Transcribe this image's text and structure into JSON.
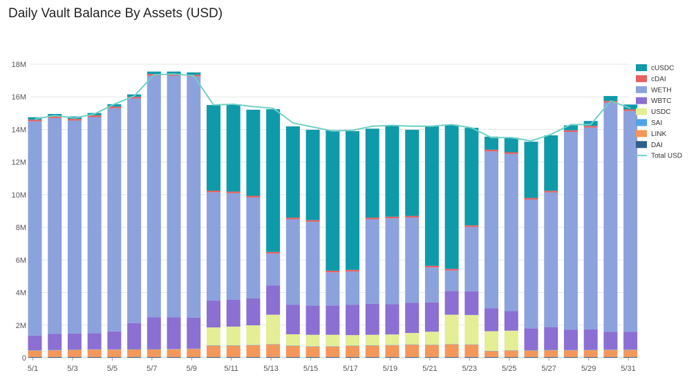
{
  "chart_data": {
    "type": "bar",
    "title": "Daily Vault Balance By Assets (USD)",
    "stacked": true,
    "xlabel": "",
    "ylabel": "",
    "ylim": [
      0,
      18000000
    ],
    "y_ticks": [
      0,
      2000000,
      4000000,
      6000000,
      8000000,
      10000000,
      12000000,
      14000000,
      16000000,
      18000000
    ],
    "y_tick_labels": [
      "0",
      "2M",
      "4M",
      "6M",
      "8M",
      "10M",
      "12M",
      "14M",
      "16M",
      "18M"
    ],
    "grid": true,
    "legend_position": "right",
    "categories": [
      "5/1",
      "5/2",
      "5/3",
      "5/4",
      "5/5",
      "5/6",
      "5/7",
      "5/8",
      "5/9",
      "5/10",
      "5/11",
      "5/12",
      "5/13",
      "5/14",
      "5/15",
      "5/16",
      "5/17",
      "5/18",
      "5/19",
      "5/20",
      "5/21",
      "5/22",
      "5/23",
      "5/24",
      "5/25",
      "5/26",
      "5/27",
      "5/28",
      "5/29",
      "5/30",
      "5/31"
    ],
    "x_tick_labels": [
      "5/1",
      "5/3",
      "5/5",
      "5/7",
      "5/9",
      "5/11",
      "5/13",
      "5/15",
      "5/17",
      "5/19",
      "5/21",
      "5/23",
      "5/25",
      "5/27",
      "5/29",
      "5/31"
    ],
    "series": [
      {
        "name": "DAI",
        "color": "#2d5f8a",
        "values": [
          40000,
          40000,
          40000,
          40000,
          40000,
          40000,
          40000,
          40000,
          40000,
          40000,
          40000,
          40000,
          40000,
          40000,
          40000,
          40000,
          40000,
          40000,
          40000,
          40000,
          40000,
          40000,
          40000,
          40000,
          40000,
          40000,
          40000,
          40000,
          40000,
          40000,
          40000
        ]
      },
      {
        "name": "LINK",
        "color": "#f4975b",
        "values": [
          400000,
          420000,
          450000,
          460000,
          460000,
          470000,
          470000,
          480000,
          500000,
          700000,
          700000,
          730000,
          780000,
          680000,
          650000,
          650000,
          680000,
          700000,
          720000,
          760000,
          740000,
          780000,
          760000,
          370000,
          400000,
          400000,
          420000,
          420000,
          430000,
          440000,
          440000
        ]
      },
      {
        "name": "SAI",
        "color": "#4fa3e8",
        "values": [
          20000,
          20000,
          20000,
          20000,
          20000,
          20000,
          20000,
          20000,
          20000,
          20000,
          20000,
          20000,
          20000,
          20000,
          20000,
          20000,
          20000,
          20000,
          20000,
          20000,
          20000,
          20000,
          20000,
          20000,
          20000,
          20000,
          20000,
          20000,
          20000,
          20000,
          20000
        ]
      },
      {
        "name": "USDC",
        "color": "#e3ee95",
        "values": [
          0,
          0,
          0,
          0,
          0,
          0,
          0,
          0,
          0,
          1100000,
          1150000,
          1200000,
          1800000,
          700000,
          700000,
          700000,
          650000,
          650000,
          650000,
          700000,
          800000,
          1800000,
          1800000,
          1200000,
          1200000,
          0,
          0,
          0,
          0,
          0,
          0
        ]
      },
      {
        "name": "WBTC",
        "color": "#8b6fd3",
        "values": [
          900000,
          980000,
          980000,
          980000,
          1100000,
          1600000,
          1950000,
          1950000,
          1900000,
          1650000,
          1650000,
          1650000,
          1800000,
          1800000,
          1800000,
          1800000,
          1850000,
          1900000,
          1850000,
          1850000,
          1800000,
          1450000,
          1450000,
          1400000,
          1200000,
          1350000,
          1400000,
          1250000,
          1250000,
          1100000,
          1100000
        ]
      },
      {
        "name": "WETH",
        "color": "#8ca2dd",
        "values": [
          13140000,
          13240000,
          13060000,
          13260000,
          13680000,
          13770000,
          14820000,
          14810000,
          14790000,
          6640000,
          6530000,
          6190000,
          1950000,
          5250000,
          5130000,
          2030000,
          2050000,
          5180000,
          5270000,
          5230000,
          2140000,
          1260000,
          3950000,
          9630000,
          9640000,
          7890000,
          8260000,
          12120000,
          12380000,
          14050000,
          13530000
        ]
      },
      {
        "name": "cDAI",
        "color": "#e86060",
        "values": [
          100000,
          100000,
          100000,
          100000,
          100000,
          100000,
          100000,
          100000,
          100000,
          100000,
          100000,
          100000,
          100000,
          100000,
          100000,
          100000,
          100000,
          100000,
          100000,
          100000,
          100000,
          100000,
          100000,
          100000,
          100000,
          100000,
          100000,
          100000,
          100000,
          100000,
          100000
        ]
      },
      {
        "name": "cUSDC",
        "color": "#0f9aaa",
        "values": [
          150000,
          150000,
          150000,
          150000,
          150000,
          150000,
          150000,
          150000,
          150000,
          5250000,
          5310000,
          5280000,
          8750000,
          5600000,
          5540000,
          8620000,
          8510000,
          5460000,
          5600000,
          5280000,
          8550000,
          8840000,
          5980000,
          800000,
          900000,
          3450000,
          3400000,
          300000,
          300000,
          300000,
          300000
        ]
      }
    ],
    "line_series": {
      "name": "Total USD",
      "color": "#6fd0c5",
      "values": [
        14650000,
        14850000,
        14700000,
        14950000,
        15550000,
        16050000,
        17350000,
        17400000,
        17300000,
        15500000,
        15550000,
        15400000,
        15300000,
        14400000,
        14150000,
        13900000,
        13950000,
        14200000,
        14250000,
        14200000,
        14200000,
        14300000,
        14100000,
        13500000,
        13500000,
        13300000,
        13700000,
        14300000,
        14300000,
        15750000,
        15300000
      ]
    },
    "legend_order": [
      "cUSDC",
      "cDAI",
      "WETH",
      "WBTC",
      "USDC",
      "SAI",
      "LINK",
      "DAI",
      "Total USD"
    ]
  }
}
